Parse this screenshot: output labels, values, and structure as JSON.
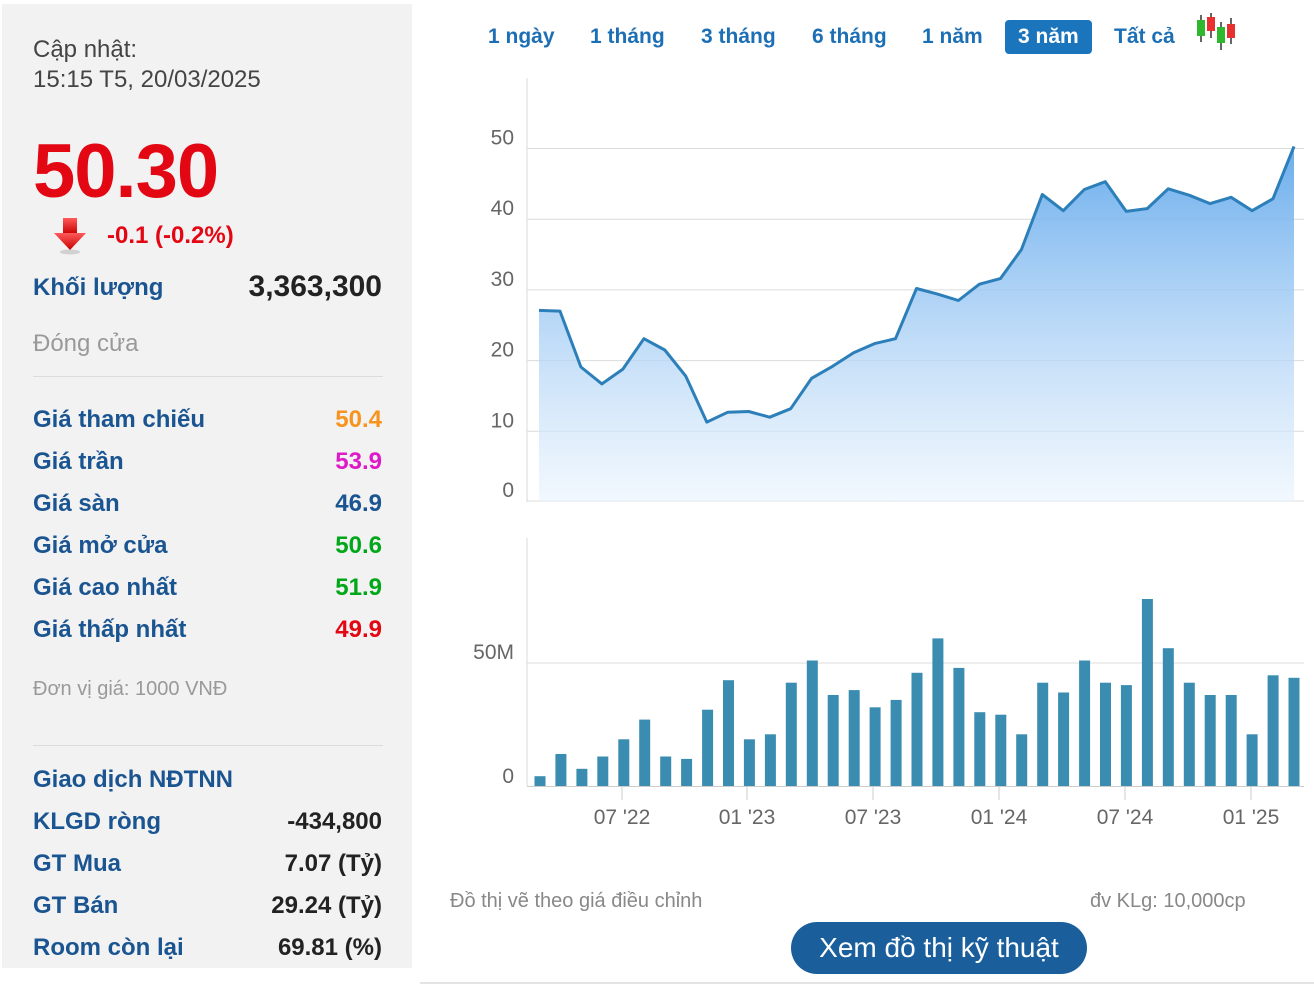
{
  "info": {
    "update_label": "Cập nhật:",
    "update_time": "15:15 T5, 20/03/2025",
    "price": "50.30",
    "change": "-0.1 (-0.2%)",
    "volume_label": "Khối lượng",
    "volume_value": "3,363,300",
    "status": "Đóng cửa",
    "price_rows": [
      {
        "label": "Giá tham chiếu",
        "value": "50.4",
        "color": "#f7941d"
      },
      {
        "label": "Giá trần",
        "value": "53.9",
        "color": "#e019c8"
      },
      {
        "label": "Giá sàn",
        "value": "46.9",
        "color": "#1a5591"
      },
      {
        "label": "Giá mở cửa",
        "value": "50.6",
        "color": "#00a819"
      },
      {
        "label": "Giá cao nhất",
        "value": "51.9",
        "color": "#00a819"
      },
      {
        "label": "Giá thấp nhất",
        "value": "49.9",
        "color": "#e30613"
      }
    ],
    "unit_note": "Đơn vị giá: 1000 VNĐ",
    "foreign_title": "Giao dịch NĐTNN",
    "foreign_rows": [
      {
        "label": "KLGD ròng",
        "value": "-434,800"
      },
      {
        "label": "GT Mua",
        "value": "7.07 (Tỷ)"
      },
      {
        "label": "GT Bán",
        "value": "29.24 (Tỷ)"
      },
      {
        "label": "Room còn lại",
        "value": "69.81 (%)"
      }
    ]
  },
  "range_buttons": [
    "1 ngày",
    "1 tháng",
    "3 tháng",
    "6 tháng",
    "1 năm",
    "3 năm",
    "Tất cả"
  ],
  "active_range": "3 năm",
  "colors": {
    "price_line": "#2c7fb8",
    "volume_bar": "#3a8db0",
    "active_button": "#1b75bc",
    "down": "#e30613"
  },
  "footnote_left": "Đồ thị vẽ theo giá điều chỉnh",
  "footnote_right": "đv KLg: 10,000cp",
  "tech_button": "Xem đồ thị kỹ thuật",
  "chart_data": [
    {
      "type": "area",
      "yticks": [
        "0",
        "10",
        "20",
        "30",
        "40",
        "50"
      ],
      "ylim": [
        0,
        50
      ],
      "series": [
        {
          "values": [
            27.1,
            27.0,
            19.1,
            16.7,
            18.8,
            23.1,
            21.5,
            17.8,
            11.3,
            12.7,
            12.8,
            12.0,
            13.2,
            17.5,
            19.2,
            21.1,
            22.4,
            23.1,
            30.2,
            29.4,
            28.5,
            30.8,
            31.6,
            35.7,
            43.5,
            41.2,
            44.2,
            45.3,
            41.1,
            41.5,
            44.3,
            43.4,
            42.2,
            43.1,
            41.2,
            42.9,
            50.3
          ]
        }
      ],
      "grid": true
    },
    {
      "type": "bar",
      "yticks": [
        "0",
        "50M"
      ],
      "xticks": [
        "07 '22",
        "01 '23",
        "07 '23",
        "01 '24",
        "07 '24",
        "01 '25"
      ],
      "series": [
        {
          "values": [
            4,
            13,
            7,
            12,
            19,
            27,
            12,
            11,
            31,
            43,
            19,
            21,
            42,
            51,
            37,
            39,
            32,
            35,
            46,
            60,
            48,
            30,
            29,
            21,
            42,
            38,
            51,
            42,
            41,
            76,
            56,
            42,
            37,
            37,
            21,
            45,
            44
          ]
        }
      ],
      "grid": true
    }
  ]
}
